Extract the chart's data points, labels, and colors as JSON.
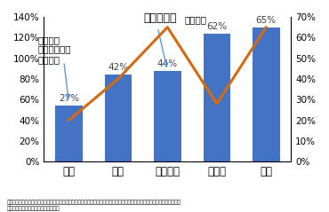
{
  "categories": [
    "日本",
    "英国",
    "フランス",
    "スイス",
    "米国"
  ],
  "bar_values": [
    54,
    84,
    88,
    124,
    130
  ],
  "bar_labels": [
    "27%",
    "42%",
    "44%",
    "62%",
    "65%"
  ],
  "line_values": [
    20,
    40,
    65,
    28,
    65
  ],
  "bar_color": "#4472C4",
  "line_color": "#D46A10",
  "title_text": "食料自給率",
  "title_suffix": "（左軸）",
  "left_label_line1": "政府支出",
  "left_label_line2": "対農業産出額",
  "left_label_line3": "（右軸）",
  "left_ylim": [
    0,
    140
  ],
  "right_ylim": [
    0,
    70
  ],
  "left_ticks": [
    0,
    20,
    40,
    60,
    80,
    100,
    120,
    140
  ],
  "right_ticks": [
    0,
    10,
    20,
    30,
    40,
    50,
    60,
    70
  ],
  "footnote_line1": "（出典）政府支出対農業産出額：「よくわかるＴＰＰ４８のまちがい」（鈴木嬣弘・木下順子：著　農文協２０１１．１２）",
  "footnote_line2": "食料自給率：農林水産省ホームページ",
  "bg_color": "#FFFFFF",
  "arrow_color": "#5B9BD5"
}
